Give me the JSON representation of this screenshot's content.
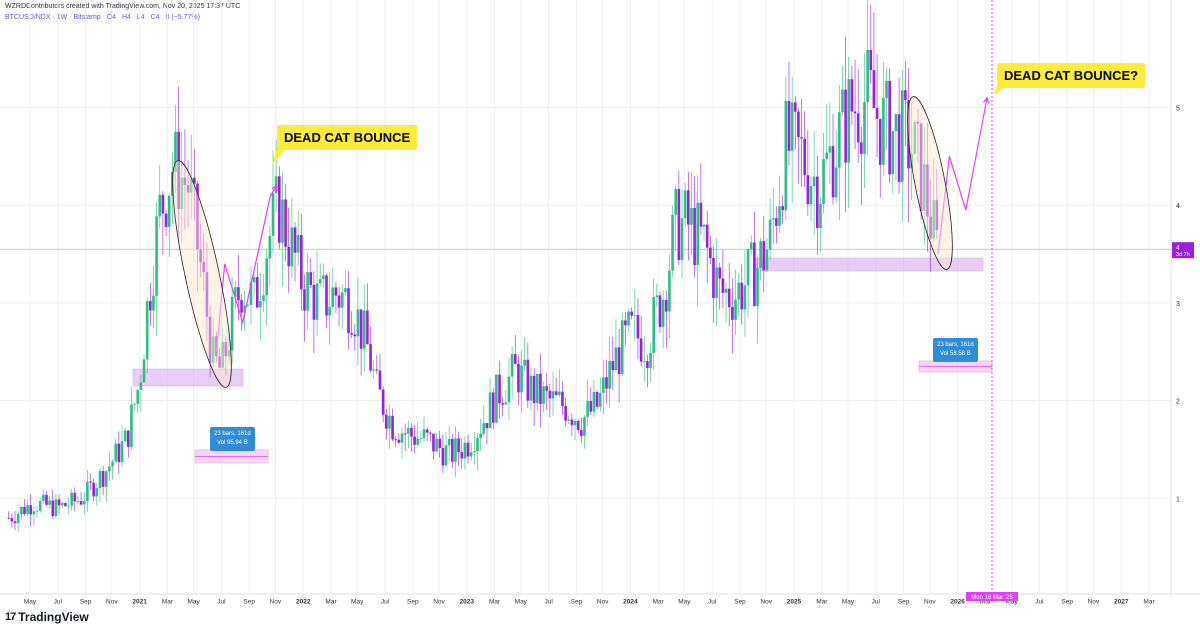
{
  "header": {
    "credit": "WZRDContributors created with TradingView.com, Nov 20, 2025 17:37 UTC"
  },
  "symbol_line": {
    "symbol": "BTCUSD/NDX · 1W · Bitstamp",
    "open": "O4",
    "high": "H4",
    "low": "L4",
    "close": "C4",
    "change": "0 (−5.77%)"
  },
  "price_badge": {
    "value": "4",
    "countdown": "3d 7h"
  },
  "date_marker": "Mon 16 Mar '26",
  "annotations": {
    "bounce1": "DEAD CAT BOUNCE",
    "bounce2": "DEAD CAT BOUNCE?"
  },
  "stats": {
    "left": {
      "bars": "23 bars, 161d",
      "vol": "Vol 95.94 B"
    },
    "right": {
      "bars": "23 bars, 161d",
      "vol": "Vol 58.58 B"
    }
  },
  "brand": {
    "logo_text": "TradingView",
    "logo_glyph": "17"
  },
  "colors": {
    "up": "#2ebd85",
    "down": "#9b1de0",
    "projection": "#e040fb",
    "zone": "#d8a6f0",
    "callout": "#ffeb3b",
    "stat_box": "#2f8cd8"
  },
  "chart_data": {
    "type": "candlestick",
    "title": "",
    "y_ticks": [
      1,
      2,
      3,
      4,
      5
    ],
    "ylim": [
      0,
      6
    ],
    "x_ticks": [
      "May",
      "Jul",
      "Sep",
      "Nov",
      "2021",
      "Mar",
      "May",
      "Jul",
      "Sep",
      "Nov",
      "2022",
      "Mar",
      "May",
      "Jul",
      "Sep",
      "Nov",
      "2023",
      "Mar",
      "May",
      "Jul",
      "Sep",
      "Nov",
      "2024",
      "Mar",
      "May",
      "Jul",
      "Sep",
      "Nov",
      "2025",
      "Mar",
      "May",
      "Jul",
      "Sep",
      "Nov",
      "2026",
      "Mar",
      "May",
      "Jul",
      "Sep",
      "Nov",
      "2027",
      "Mar"
    ],
    "x_tick_months": [
      2020.33,
      2020.5,
      2020.67,
      2020.83,
      2021.0,
      2021.17,
      2021.33,
      2021.5,
      2021.67,
      2021.83,
      2022.0,
      2022.17,
      2022.33,
      2022.5,
      2022.67,
      2022.83,
      2023.0,
      2023.17,
      2023.33,
      2023.5,
      2023.67,
      2023.83,
      2024.0,
      2024.17,
      2024.33,
      2024.5,
      2024.67,
      2024.83,
      2025.0,
      2025.17,
      2025.33,
      2025.5,
      2025.67,
      2025.83,
      2026.0,
      2026.17,
      2026.33,
      2026.5,
      2026.67,
      2026.83,
      2027.0,
      2027.17
    ],
    "close_path": [
      [
        2020.2,
        0.8
      ],
      [
        2020.35,
        0.95
      ],
      [
        2020.5,
        0.9
      ],
      [
        2020.65,
        1.0
      ],
      [
        2020.8,
        1.3
      ],
      [
        2020.92,
        1.6
      ],
      [
        2021.0,
        2.2
      ],
      [
        2021.05,
        3.0
      ],
      [
        2021.12,
        3.9
      ],
      [
        2021.2,
        4.4
      ],
      [
        2021.3,
        4.2
      ],
      [
        2021.38,
        3.3
      ],
      [
        2021.45,
        2.4
      ],
      [
        2021.5,
        2.3
      ],
      [
        2021.55,
        2.7
      ],
      [
        2021.62,
        3.2
      ],
      [
        2021.7,
        3.0
      ],
      [
        2021.78,
        3.6
      ],
      [
        2021.85,
        4.0
      ],
      [
        2021.92,
        3.6
      ],
      [
        2022.0,
        3.2
      ],
      [
        2022.1,
        3.0
      ],
      [
        2022.2,
        3.1
      ],
      [
        2022.3,
        3.0
      ],
      [
        2022.4,
        2.5
      ],
      [
        2022.45,
        2.1
      ],
      [
        2022.55,
        1.75
      ],
      [
        2022.65,
        1.65
      ],
      [
        2022.75,
        1.6
      ],
      [
        2022.85,
        1.5
      ],
      [
        2022.9,
        1.45
      ],
      [
        2023.0,
        1.55
      ],
      [
        2023.1,
        1.8
      ],
      [
        2023.2,
        2.1
      ],
      [
        2023.3,
        2.3
      ],
      [
        2023.4,
        2.1
      ],
      [
        2023.5,
        2.0
      ],
      [
        2023.6,
        1.95
      ],
      [
        2023.7,
        1.8
      ],
      [
        2023.8,
        1.95
      ],
      [
        2023.9,
        2.4
      ],
      [
        2024.0,
        2.7
      ],
      [
        2024.1,
        2.6
      ],
      [
        2024.2,
        3.1
      ],
      [
        2024.28,
        3.8
      ],
      [
        2024.35,
        3.8
      ],
      [
        2024.45,
        3.6
      ],
      [
        2024.55,
        3.1
      ],
      [
        2024.65,
        3.1
      ],
      [
        2024.75,
        3.3
      ],
      [
        2024.85,
        3.6
      ],
      [
        2024.95,
        4.6
      ],
      [
        2025.05,
        4.5
      ],
      [
        2025.15,
        4.2
      ],
      [
        2025.25,
        4.6
      ],
      [
        2025.35,
        5.0
      ],
      [
        2025.45,
        5.1
      ],
      [
        2025.55,
        4.8
      ],
      [
        2025.65,
        4.7
      ],
      [
        2025.72,
        4.6
      ],
      [
        2025.78,
        4.3
      ],
      [
        2025.83,
        3.9
      ],
      [
        2025.88,
        3.5
      ]
    ],
    "projection_2021": [
      [
        2021.47,
        2.5
      ],
      [
        2021.52,
        3.4
      ],
      [
        2021.63,
        2.8
      ],
      [
        2021.8,
        4.1
      ],
      [
        2021.84,
        4.2
      ]
    ],
    "projection_2025": [
      [
        2025.88,
        3.5
      ],
      [
        2025.95,
        4.5
      ],
      [
        2026.05,
        3.95
      ],
      [
        2026.18,
        5.1
      ]
    ],
    "price_line": 3.55
  }
}
